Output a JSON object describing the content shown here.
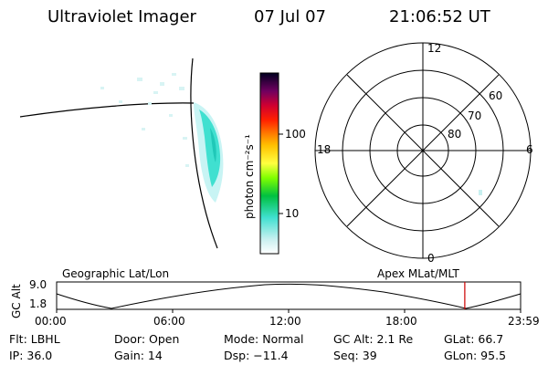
{
  "header": {
    "instrument": "Ultraviolet Imager",
    "date": "07 Jul 07",
    "time": "21:06:52 UT"
  },
  "colorbar": {
    "label": "photon cm⁻²s⁻¹",
    "ticks": [
      "100",
      "10"
    ],
    "colors": [
      "#ffffff",
      "#c8f0f0",
      "#40e0d0",
      "#00c040",
      "#80ff00",
      "#e0ff40",
      "#ffff00",
      "#ffc000",
      "#ff8000",
      "#ff2000",
      "#e00020",
      "#a00040",
      "#600060",
      "#200040",
      "#000020"
    ]
  },
  "polar": {
    "lat_labels": [
      "80",
      "70",
      "60"
    ],
    "mlt_labels": {
      "top": "12",
      "left": "18",
      "right": "6",
      "bottom": "0"
    }
  },
  "timeline": {
    "left_label": "Geographic Lat/Lon",
    "right_label": "Apex MLat/MLT",
    "y_axis_title": "GC Alt",
    "y_ticks": [
      "9.0",
      "1.8"
    ],
    "x_ticks": [
      "00:00",
      "06:00",
      "12:00",
      "18:00",
      "23:59"
    ],
    "current_marker_color": "#cc0000",
    "current_time_fraction": 0.8797
  },
  "info": {
    "flt": "Flt: LBHL",
    "ip": "IP: 36.0",
    "door": "Door: Open",
    "gain": "Gain: 14",
    "mode": "Mode: Normal",
    "dsp": "Dsp:  −11.4",
    "gcalt": "GC Alt: 2.1 Re",
    "seq": "Seq: 39",
    "glat": "GLat:  66.7",
    "glon": "GLon:  95.5"
  }
}
